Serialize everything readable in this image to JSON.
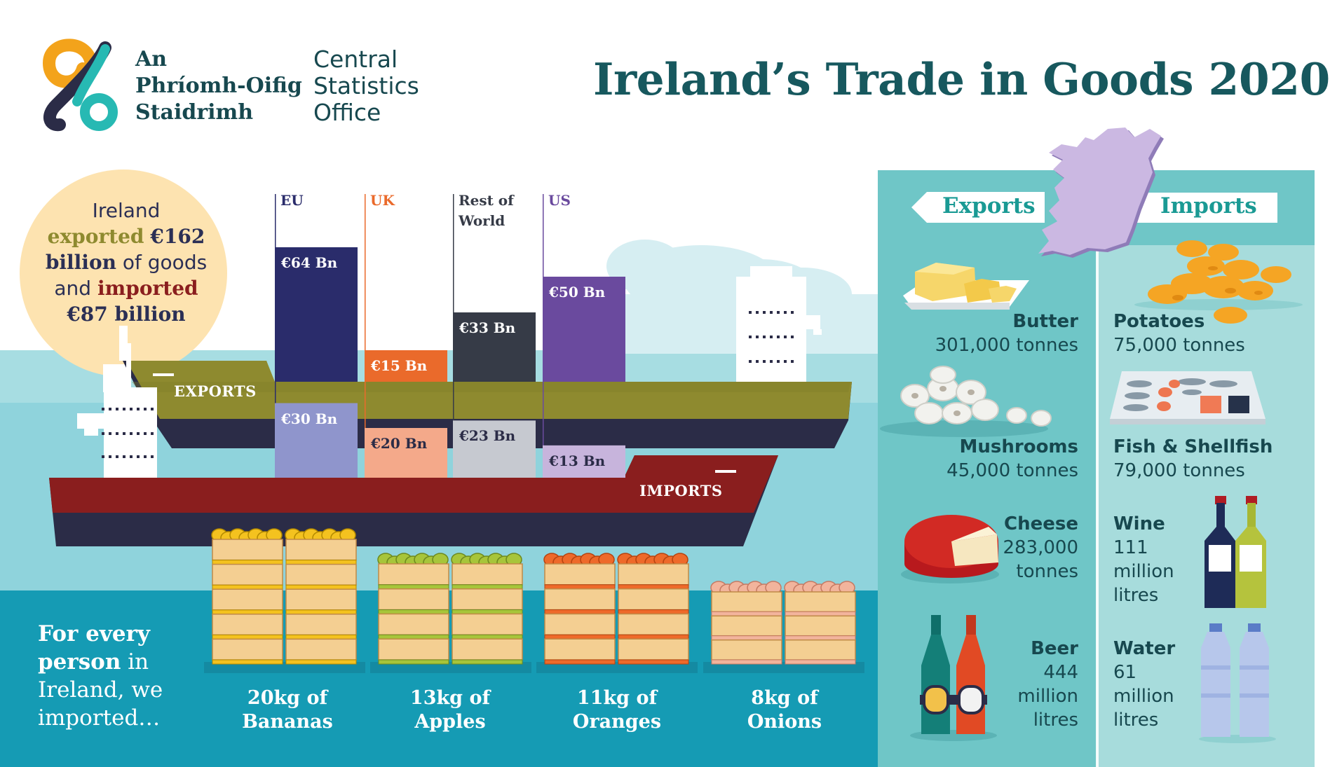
{
  "logo": {
    "irish_lines": [
      "An",
      "Phríomh-Oifig",
      "Staidrimh"
    ],
    "english_lines": [
      "Central",
      "Statistics",
      "Office"
    ]
  },
  "title": "Ireland’s Trade in Goods 2020",
  "summary": {
    "line1": "Ireland",
    "exported_word": "exported",
    "exported_value": "€162",
    "line3a": "billion",
    "line3b": "of goods",
    "line4a": "and",
    "imported_word": "imported",
    "imported_value": "€87 billion"
  },
  "ships": {
    "exports_label": "EXPORTS",
    "imports_label": "IMPORTS"
  },
  "chart_data": {
    "type": "bar",
    "categories": [
      "EU",
      "UK",
      "Rest of World",
      "US"
    ],
    "series": [
      {
        "name": "EXPORTS",
        "values": [
          64,
          15,
          33,
          50
        ],
        "labels": [
          "€64 Bn",
          "€15 Bn",
          "€33 Bn",
          "€50 Bn"
        ]
      },
      {
        "name": "IMPORTS",
        "values": [
          30,
          20,
          23,
          13
        ],
        "labels": [
          "€30 Bn",
          "€20 Bn",
          "€23 Bn",
          "€13 Bn"
        ]
      }
    ],
    "category_label_lines": [
      [
        "EU"
      ],
      [
        "UK"
      ],
      [
        "Rest of",
        "World"
      ],
      [
        "US"
      ]
    ],
    "unit": "Bn",
    "colors": {
      "exports": [
        "#2a2c6b",
        "#ea6a2b",
        "#363b47",
        "#6a4a9e"
      ],
      "imports": [
        "#8f95cc",
        "#f4a98a",
        "#c6c9d0",
        "#c7b4dc"
      ],
      "category_text": [
        "#2a2c6b",
        "#ea6a2b",
        "#363b47",
        "#6a4a9e"
      ]
    }
  },
  "per_capita": {
    "line1": "For every",
    "line2_bold": "person",
    "line2_rest": " in",
    "line3": "Ireland, we",
    "line4": "imported…",
    "items": [
      {
        "line1": "20kg of",
        "line2": "Bananas",
        "icon": "banana-crate-icon"
      },
      {
        "line1": "13kg of",
        "line2": "Apples",
        "icon": "apple-crate-icon"
      },
      {
        "line1": "11kg of",
        "line2": "Oranges",
        "icon": "orange-crate-icon"
      },
      {
        "line1": "8kg of",
        "line2": "Onions",
        "icon": "onion-crate-icon"
      }
    ]
  },
  "panel": {
    "exports_heading": "Exports",
    "imports_heading": "Imports",
    "exports": [
      {
        "name": "Butter",
        "lines": [
          "301,000 tonnes"
        ],
        "icon": "butter-icon"
      },
      {
        "name": "Mushrooms",
        "lines": [
          "45,000 tonnes"
        ],
        "icon": "mushrooms-icon"
      },
      {
        "name": "Cheese",
        "lines": [
          "283,000",
          "tonnes"
        ],
        "icon": "cheese-icon"
      },
      {
        "name": "Beer",
        "lines": [
          "444",
          "million",
          "litres"
        ],
        "icon": "beer-bottles-icon"
      }
    ],
    "imports": [
      {
        "name": "Potatoes",
        "lines": [
          "75,000 tonnes"
        ],
        "icon": "potatoes-icon"
      },
      {
        "name": "Fish & Shellfish",
        "lines": [
          "79,000 tonnes"
        ],
        "icon": "fish-tray-icon"
      },
      {
        "name": "Wine",
        "lines": [
          "111",
          "million",
          "litres"
        ],
        "icon": "wine-bottles-icon"
      },
      {
        "name": "Water",
        "lines": [
          "61",
          "million",
          "litres"
        ],
        "icon": "water-bottles-icon"
      }
    ]
  },
  "colors": {
    "title": "#17585e",
    "export_ship": "#8e8a2f",
    "import_ship": "#8a1e1e",
    "sea": "#8fd3dc",
    "deep_sea": "#159bb4",
    "panel": "#6fc6c7"
  }
}
